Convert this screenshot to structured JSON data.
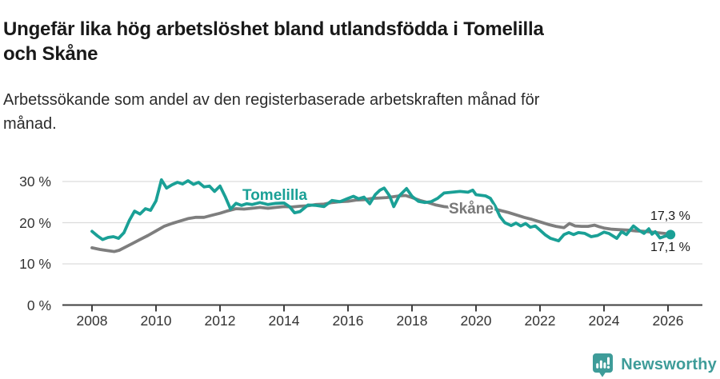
{
  "header": {
    "title_lines": [
      "Ungefär lika hög arbetslöshet bland utlandsfödda i Tomelilla",
      "och Skåne"
    ],
    "subtitle_lines": [
      "Arbetssökande som andel av den registerbaserade arbetskraften månad för",
      "månad."
    ]
  },
  "chart_data": {
    "type": "line",
    "title": "Ungefär lika hög arbetslöshet bland utlandsfödda i Tomelilla och Skåne",
    "subtitle": "Arbetssökande som andel av den registerbaserade arbetskraften månad för månad.",
    "xlabel": "",
    "ylabel": "",
    "grid": true,
    "legend_position": "inline-labels",
    "x_axis": {
      "range": [
        2007.075,
        2027.075
      ],
      "ticks": [
        2008,
        2010,
        2012,
        2014,
        2016,
        2018,
        2020,
        2022,
        2024,
        2026
      ],
      "tick_labels": [
        "2008",
        "2010",
        "2012",
        "2014",
        "2016",
        "2018",
        "2020",
        "2022",
        "2024",
        "2026"
      ]
    },
    "y_axis": {
      "range": [
        0,
        34
      ],
      "ticks": [
        0,
        10,
        20,
        30
      ],
      "tick_labels": [
        "0 %",
        "10 %",
        "20 %",
        "30 %"
      ],
      "unit": "%"
    },
    "colors": {
      "axis": "#3f3f3f",
      "gridline": "#dcdcdc",
      "tick_text": "#333333",
      "annotation_text": "#191919"
    },
    "series": [
      {
        "name": "Tomelilla",
        "color": "#1aa096",
        "end_label": "17,1 %",
        "last_value": 17.1,
        "points": [
          [
            2008.0,
            17.9
          ],
          [
            2008.17,
            16.8
          ],
          [
            2008.33,
            15.9
          ],
          [
            2008.5,
            16.4
          ],
          [
            2008.67,
            16.6
          ],
          [
            2008.83,
            16.2
          ],
          [
            2009.0,
            17.6
          ],
          [
            2009.17,
            20.6
          ],
          [
            2009.33,
            22.8
          ],
          [
            2009.5,
            22.1
          ],
          [
            2009.67,
            23.4
          ],
          [
            2009.83,
            23.0
          ],
          [
            2010.0,
            25.3
          ],
          [
            2010.08,
            27.7
          ],
          [
            2010.17,
            30.4
          ],
          [
            2010.33,
            28.4
          ],
          [
            2010.5,
            29.2
          ],
          [
            2010.67,
            29.8
          ],
          [
            2010.83,
            29.4
          ],
          [
            2011.0,
            30.2
          ],
          [
            2011.17,
            29.3
          ],
          [
            2011.33,
            29.8
          ],
          [
            2011.5,
            28.7
          ],
          [
            2011.67,
            28.9
          ],
          [
            2011.83,
            27.6
          ],
          [
            2012.0,
            28.9
          ],
          [
            2012.17,
            26.2
          ],
          [
            2012.33,
            23.3
          ],
          [
            2012.5,
            24.7
          ],
          [
            2012.67,
            24.2
          ],
          [
            2012.83,
            24.6
          ],
          [
            2013.0,
            24.4
          ],
          [
            2013.25,
            24.9
          ],
          [
            2013.5,
            24.4
          ],
          [
            2013.75,
            24.7
          ],
          [
            2014.0,
            24.8
          ],
          [
            2014.17,
            23.9
          ],
          [
            2014.33,
            22.4
          ],
          [
            2014.5,
            22.7
          ],
          [
            2014.75,
            24.3
          ],
          [
            2015.0,
            24.2
          ],
          [
            2015.25,
            23.9
          ],
          [
            2015.5,
            25.4
          ],
          [
            2015.75,
            25.1
          ],
          [
            2016.0,
            25.9
          ],
          [
            2016.17,
            26.4
          ],
          [
            2016.33,
            25.8
          ],
          [
            2016.5,
            26.2
          ],
          [
            2016.68,
            24.6
          ],
          [
            2016.85,
            26.8
          ],
          [
            2017.0,
            27.9
          ],
          [
            2017.13,
            28.4
          ],
          [
            2017.3,
            26.5
          ],
          [
            2017.43,
            23.9
          ],
          [
            2017.6,
            26.5
          ],
          [
            2017.83,
            28.3
          ],
          [
            2018.0,
            26.4
          ],
          [
            2018.2,
            25.2
          ],
          [
            2018.4,
            24.9
          ],
          [
            2018.6,
            25.1
          ],
          [
            2018.8,
            25.9
          ],
          [
            2019.0,
            27.2
          ],
          [
            2019.25,
            27.4
          ],
          [
            2019.5,
            27.6
          ],
          [
            2019.75,
            27.4
          ],
          [
            2019.9,
            27.9
          ],
          [
            2020.0,
            26.8
          ],
          [
            2020.3,
            26.5
          ],
          [
            2020.45,
            25.9
          ],
          [
            2020.6,
            24.0
          ],
          [
            2020.75,
            21.5
          ],
          [
            2020.9,
            20.0
          ],
          [
            2021.1,
            19.3
          ],
          [
            2021.25,
            19.9
          ],
          [
            2021.4,
            19.2
          ],
          [
            2021.55,
            19.8
          ],
          [
            2021.7,
            18.9
          ],
          [
            2021.85,
            19.2
          ],
          [
            2022.0,
            18.2
          ],
          [
            2022.17,
            17.0
          ],
          [
            2022.33,
            16.2
          ],
          [
            2022.58,
            15.6
          ],
          [
            2022.75,
            17.1
          ],
          [
            2022.9,
            17.6
          ],
          [
            2023.05,
            17.1
          ],
          [
            2023.2,
            17.6
          ],
          [
            2023.4,
            17.4
          ],
          [
            2023.6,
            16.6
          ],
          [
            2023.8,
            16.9
          ],
          [
            2024.0,
            17.7
          ],
          [
            2024.15,
            17.4
          ],
          [
            2024.4,
            16.2
          ],
          [
            2024.55,
            17.8
          ],
          [
            2024.7,
            17.1
          ],
          [
            2024.92,
            19.2
          ],
          [
            2025.1,
            18.1
          ],
          [
            2025.25,
            17.4
          ],
          [
            2025.4,
            18.5
          ],
          [
            2025.5,
            17.2
          ],
          [
            2025.6,
            17.8
          ],
          [
            2025.75,
            16.3
          ],
          [
            2025.9,
            16.7
          ],
          [
            2026.08,
            17.1
          ]
        ]
      },
      {
        "name": "Skåne",
        "color": "#7e7e7e",
        "end_label": "17,3 %",
        "last_value": 17.3,
        "points": [
          [
            2008.0,
            13.9
          ],
          [
            2008.25,
            13.5
          ],
          [
            2008.5,
            13.2
          ],
          [
            2008.7,
            13.0
          ],
          [
            2008.85,
            13.3
          ],
          [
            2009.0,
            13.9
          ],
          [
            2009.25,
            14.9
          ],
          [
            2009.5,
            15.9
          ],
          [
            2009.75,
            16.9
          ],
          [
            2010.0,
            18.0
          ],
          [
            2010.25,
            19.1
          ],
          [
            2010.5,
            19.8
          ],
          [
            2010.75,
            20.4
          ],
          [
            2011.0,
            21.0
          ],
          [
            2011.25,
            21.3
          ],
          [
            2011.5,
            21.3
          ],
          [
            2011.75,
            21.8
          ],
          [
            2012.0,
            22.3
          ],
          [
            2012.25,
            22.9
          ],
          [
            2012.5,
            23.4
          ],
          [
            2012.75,
            23.3
          ],
          [
            2013.0,
            23.5
          ],
          [
            2013.25,
            23.7
          ],
          [
            2013.5,
            23.5
          ],
          [
            2013.75,
            23.7
          ],
          [
            2014.0,
            23.9
          ],
          [
            2014.25,
            23.8
          ],
          [
            2014.5,
            24.0
          ],
          [
            2014.75,
            24.1
          ],
          [
            2015.0,
            24.4
          ],
          [
            2015.25,
            24.5
          ],
          [
            2015.5,
            24.9
          ],
          [
            2015.75,
            25.1
          ],
          [
            2016.0,
            25.2
          ],
          [
            2016.25,
            25.5
          ],
          [
            2016.5,
            25.6
          ],
          [
            2016.75,
            25.9
          ],
          [
            2017.0,
            26.0
          ],
          [
            2017.2,
            26.1
          ],
          [
            2017.4,
            26.3
          ],
          [
            2017.6,
            26.5
          ],
          [
            2017.8,
            26.6
          ],
          [
            2018.0,
            26.1
          ],
          [
            2018.25,
            25.4
          ],
          [
            2018.5,
            24.9
          ],
          [
            2018.75,
            24.3
          ],
          [
            2019.0,
            23.9
          ],
          [
            2019.25,
            23.7
          ],
          [
            2019.5,
            23.6
          ],
          [
            2019.75,
            23.5
          ],
          [
            2020.0,
            23.4
          ],
          [
            2020.2,
            23.7
          ],
          [
            2020.42,
            23.8
          ],
          [
            2020.6,
            23.3
          ],
          [
            2020.8,
            22.9
          ],
          [
            2021.0,
            22.5
          ],
          [
            2021.25,
            21.9
          ],
          [
            2021.5,
            21.3
          ],
          [
            2021.75,
            20.8
          ],
          [
            2022.0,
            20.2
          ],
          [
            2022.25,
            19.6
          ],
          [
            2022.5,
            19.1
          ],
          [
            2022.75,
            18.8
          ],
          [
            2022.92,
            19.8
          ],
          [
            2023.1,
            19.2
          ],
          [
            2023.3,
            19.1
          ],
          [
            2023.5,
            19.1
          ],
          [
            2023.7,
            19.4
          ],
          [
            2023.85,
            19.0
          ],
          [
            2024.0,
            18.7
          ],
          [
            2024.25,
            18.4
          ],
          [
            2024.5,
            18.3
          ],
          [
            2024.75,
            18.2
          ],
          [
            2025.0,
            18.0
          ],
          [
            2025.25,
            17.9
          ],
          [
            2025.5,
            17.7
          ],
          [
            2025.75,
            17.5
          ],
          [
            2026.0,
            17.3
          ]
        ]
      }
    ]
  },
  "footer": {
    "brand": "Newsworthy",
    "brand_color": "#3e9c99",
    "icon": "newsworthy-speech-bubble-chart-icon"
  }
}
